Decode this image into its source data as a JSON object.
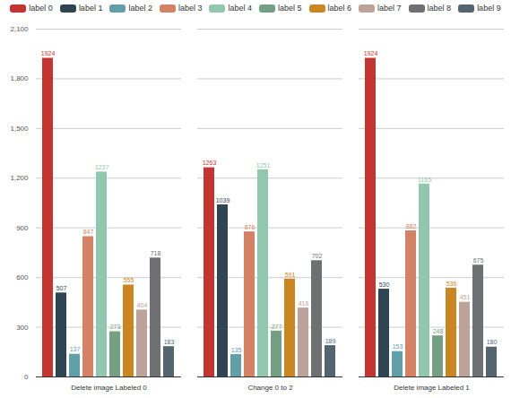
{
  "chart_data": {
    "type": "bar",
    "categories": [
      "Delete image Labeled 0",
      "Change 0 to 2",
      "Delete image Labeled 1"
    ],
    "series": [
      {
        "name": "label 0",
        "color": "#c23531",
        "values": [
          1924,
          1263,
          1924
        ]
      },
      {
        "name": "label 1",
        "color": "#2f4554",
        "values": [
          507,
          1039,
          530
        ]
      },
      {
        "name": "label 2",
        "color": "#61a0a8",
        "values": [
          137,
          135,
          153
        ]
      },
      {
        "name": "label 3",
        "color": "#d48265",
        "values": [
          847,
          876,
          882
        ]
      },
      {
        "name": "label 4",
        "color": "#91c7ae",
        "values": [
          1237,
          1251,
          1165
        ]
      },
      {
        "name": "label 5",
        "color": "#749f83",
        "values": [
          273,
          277,
          248
        ]
      },
      {
        "name": "label 6",
        "color": "#ca8622",
        "values": [
          555,
          591,
          536
        ]
      },
      {
        "name": "label 7",
        "color": "#bda29a",
        "values": [
          404,
          416,
          451
        ]
      },
      {
        "name": "label 8",
        "color": "#6e7074",
        "values": [
          718,
          702,
          675
        ]
      },
      {
        "name": "label 9",
        "color": "#546570",
        "values": [
          183,
          189,
          180
        ]
      }
    ],
    "ylim": [
      0,
      2100
    ],
    "yticks": [
      0,
      300,
      600,
      900,
      {
        "value": 1200,
        "label": "1,200"
      },
      {
        "value": 1500,
        "label": "1,500"
      },
      {
        "value": 1800,
        "label": "1,800"
      },
      {
        "value": 2100,
        "label": "2,100"
      }
    ],
    "grid": true,
    "legend": "top",
    "data_labels": true
  }
}
